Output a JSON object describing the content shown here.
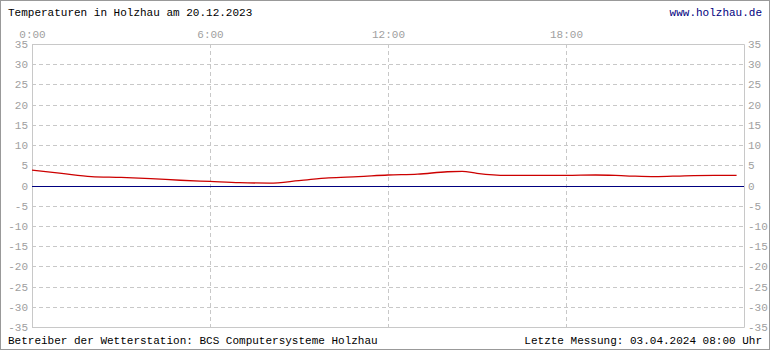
{
  "chart_data": {
    "type": "line",
    "title": "Temperaturen in Holzhau am 20.12.2023",
    "annotations": [
      "www.holzhau.de",
      "Betreiber der Wetterstation: BCS Computersysteme Holzhau",
      "Letzte Messung: 03.04.2024 08:00 Uhr"
    ],
    "x": [
      0,
      1,
      2,
      3,
      4,
      5,
      6,
      7,
      8,
      9,
      10,
      11,
      12,
      13,
      14,
      14.5,
      15,
      16,
      17,
      18,
      19,
      20,
      21,
      22,
      23,
      23.75
    ],
    "values": [
      3.8,
      3.0,
      2.2,
      2.0,
      1.7,
      1.3,
      1.0,
      0.7,
      0.6,
      1.2,
      1.9,
      2.2,
      2.6,
      2.8,
      3.4,
      3.5,
      3.0,
      2.5,
      2.5,
      2.5,
      2.6,
      2.4,
      2.2,
      2.4,
      2.5,
      2.5
    ],
    "color": "#cc0000",
    "xlim": [
      0,
      24
    ],
    "xticks": [
      {
        "value": 0,
        "label": "0:00"
      },
      {
        "value": 6,
        "label": "6:00"
      },
      {
        "value": 12,
        "label": "12:00"
      },
      {
        "value": 18,
        "label": "18:00"
      }
    ],
    "ylim": [
      -35,
      35
    ],
    "yticks": [
      -35,
      -30,
      -25,
      -20,
      -15,
      -10,
      -5,
      0,
      5,
      10,
      15,
      20,
      25,
      30,
      35
    ],
    "grid": true
  }
}
